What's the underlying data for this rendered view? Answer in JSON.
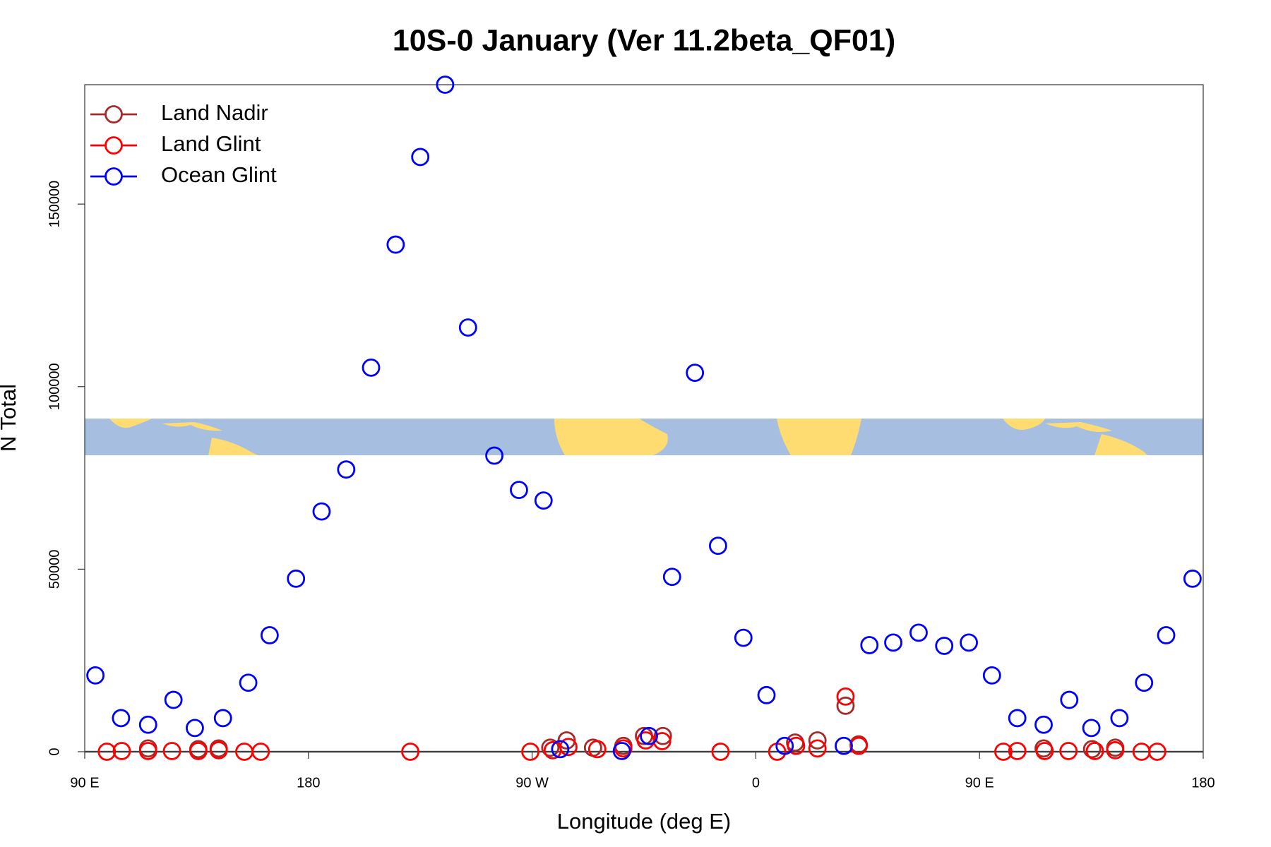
{
  "chart_data": {
    "type": "scatter",
    "title": "10S-0 January (Ver 11.2beta_QF01)",
    "x_label": "Longitude (deg E)",
    "y_label": "N Total",
    "xlim": [
      90,
      540
    ],
    "xticks": [
      {
        "value": 90,
        "label": "90 E"
      },
      180,
      {
        "value": 270,
        "label": "90 W"
      },
      {
        "value": 360,
        "label": "0"
      },
      {
        "value": 450,
        "label": "90 E"
      },
      {
        "value": 540,
        "label": "180"
      }
    ],
    "ylim": [
      0,
      182700
    ],
    "yticks": [
      0,
      50000,
      100000,
      150000
    ],
    "legend": "topleft",
    "series": [
      {
        "name": "Land Nadir",
        "color": "#a52a2a",
        "x": [
          115.5,
          135.7,
          143.9,
          277.3,
          283.9,
          294.5,
          306.7,
          315.0,
          322.6,
          375.8,
          384.8,
          396.1,
          401.4,
          475.8,
          495.3,
          504.6
        ],
        "values": [
          900,
          700,
          900,
          1100,
          3100,
          1100,
          1600,
          4300,
          4300,
          2500,
          3100,
          12600,
          2000,
          900,
          700,
          1100
        ]
      },
      {
        "name": "Land Glint",
        "color": "#ff0000",
        "x": [
          98.9,
          104.9,
          115.5,
          125.1,
          135.7,
          143.9,
          154.2,
          160.8,
          221.0,
          269.3,
          278.3,
          284.6,
          296.2,
          306.7,
          315.7,
          322.3,
          345.8,
          368.6,
          376.2,
          384.8,
          396.1,
          401.4,
          459.6,
          465.2,
          476.2,
          485.8,
          496.4,
          504.6,
          515.2,
          521.5
        ],
        "values": [
          0,
          200,
          200,
          200,
          200,
          400,
          0,
          0,
          0,
          0,
          400,
          1300,
          700,
          900,
          3100,
          2900,
          0,
          0,
          1600,
          900,
          15100,
          1600,
          0,
          200,
          200,
          200,
          200,
          400,
          0,
          0
        ]
      },
      {
        "name": "Ocean Glint",
        "color": "#0000ff",
        "x": [
          94.3,
          104.6,
          115.5,
          125.7,
          134.3,
          145.6,
          155.8,
          164.4,
          175.0,
          185.3,
          195.2,
          205.2,
          215.1,
          225.0,
          235.0,
          244.2,
          254.8,
          264.7,
          274.6,
          281.3,
          306.1,
          317.0,
          326.3,
          335.5,
          344.8,
          355.0,
          364.3,
          371.6,
          395.4,
          405.7,
          415.3,
          425.5,
          435.8,
          445.7,
          455.0,
          465.2,
          475.8,
          486.1,
          495.0,
          506.3,
          516.2,
          525.1,
          535.7
        ],
        "values": [
          20900,
          9200,
          7400,
          14200,
          6500,
          9200,
          18900,
          31900,
          47400,
          65800,
          77300,
          105200,
          138900,
          162900,
          182700,
          116200,
          81100,
          71700,
          68800,
          700,
          200,
          4300,
          47900,
          103800,
          56400,
          31200,
          15500,
          1600,
          1600,
          29200,
          29900,
          32600,
          29000,
          29900,
          20900,
          9200,
          7400,
          14200,
          6500,
          9200,
          18900,
          31900,
          47400
        ]
      }
    ]
  }
}
